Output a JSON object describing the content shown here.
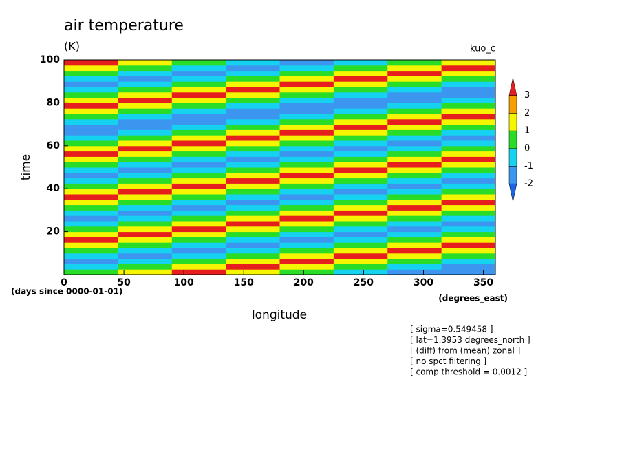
{
  "chart_data": {
    "type": "contour",
    "title": "air temperature",
    "subtitle": "(K)",
    "label_right": "kuo_c",
    "x_label": "longitude",
    "y_label": "time",
    "x_units": "(degrees_east)",
    "y_units": "(days since 0000-01-01)",
    "annotations": [
      "[ sigma=0.549458 ]",
      "[ lat=1.3953 degrees_north ]",
      "[ (diff) from (mean) zonal ]",
      "[ no spct filtering ]",
      "[ comp threshold = 0.0012 ]"
    ],
    "xlim": [
      0,
      360
    ],
    "ylim": [
      0,
      100
    ],
    "xticks": [
      0,
      50,
      100,
      150,
      200,
      250,
      300,
      350
    ],
    "yticks": [
      20,
      40,
      60,
      80,
      100
    ],
    "levels": [
      -2,
      -1,
      0,
      1,
      2,
      3
    ],
    "colors": [
      "#1e64e6",
      "#3c96f0",
      "#14d2f0",
      "#28dc28",
      "#f5f500",
      "#f5a000",
      "#e61e1e"
    ],
    "x": [
      22.5,
      67.5,
      112.5,
      157.5,
      202.5,
      247.5,
      292.5,
      337.5
    ],
    "y": [
      1.25,
      3.75,
      6.25,
      8.75,
      11.25,
      13.75,
      16.25,
      18.75,
      21.25,
      23.75,
      26.25,
      28.75,
      31.25,
      33.75,
      36.25,
      38.75,
      41.25,
      43.75,
      46.25,
      48.75,
      51.25,
      53.75,
      56.25,
      58.75,
      61.25,
      63.75,
      66.25,
      68.75,
      71.25,
      73.75,
      76.25,
      78.75,
      81.25,
      83.75,
      86.25,
      88.75,
      91.25,
      93.75,
      96.25,
      98.75
    ],
    "z": [
      [
        0.5,
        1.5,
        3.3,
        1.5,
        0.5,
        -0.5,
        -1.3,
        -1.3
      ],
      [
        -0.5,
        0.5,
        1.5,
        3.3,
        1.5,
        0.5,
        -0.5,
        -1.3
      ],
      [
        -1.3,
        -0.5,
        0.5,
        1.5,
        3.3,
        1.5,
        0.5,
        -0.5
      ],
      [
        -0.5,
        -1.3,
        -0.5,
        0.5,
        1.5,
        3.3,
        1.5,
        0.5
      ],
      [
        0.5,
        -0.5,
        -1.3,
        -0.5,
        0.5,
        1.5,
        3.3,
        1.5
      ],
      [
        1.5,
        0.5,
        -0.5,
        -1.3,
        -0.5,
        0.5,
        1.5,
        3.3
      ],
      [
        3.3,
        1.5,
        0.5,
        -0.5,
        -1.3,
        -0.5,
        0.5,
        1.5
      ],
      [
        1.5,
        3.3,
        1.5,
        0.5,
        -0.5,
        -1.3,
        -0.5,
        0.5
      ],
      [
        0.5,
        1.5,
        3.3,
        1.5,
        0.5,
        -0.5,
        -1.3,
        -0.5
      ],
      [
        -0.5,
        0.5,
        1.5,
        3.3,
        1.5,
        0.5,
        -0.5,
        -1.3
      ],
      [
        -1.3,
        -0.5,
        0.5,
        1.5,
        3.3,
        1.5,
        0.5,
        -0.5
      ],
      [
        -0.5,
        -1.3,
        -0.5,
        0.5,
        1.5,
        3.3,
        1.5,
        0.5
      ],
      [
        0.5,
        -0.5,
        -1.3,
        -0.5,
        0.5,
        1.5,
        3.3,
        1.5
      ],
      [
        1.5,
        0.5,
        -0.5,
        -1.3,
        -0.5,
        0.5,
        1.5,
        3.3
      ],
      [
        3.3,
        1.5,
        0.5,
        -0.5,
        -1.3,
        -0.5,
        0.5,
        1.5
      ],
      [
        1.5,
        3.3,
        1.5,
        0.5,
        -0.5,
        -1.3,
        -0.5,
        0.5
      ],
      [
        0.5,
        1.5,
        3.3,
        1.5,
        0.5,
        -0.5,
        -1.3,
        -0.5
      ],
      [
        -0.5,
        0.5,
        1.5,
        3.3,
        1.5,
        0.5,
        -0.5,
        -1.3
      ],
      [
        -1.3,
        -0.5,
        0.5,
        1.5,
        3.3,
        1.5,
        0.5,
        -0.5
      ],
      [
        -0.5,
        -1.3,
        -0.5,
        0.5,
        1.5,
        3.3,
        1.5,
        0.5
      ],
      [
        0.5,
        -0.5,
        -1.3,
        -0.5,
        0.5,
        1.5,
        3.3,
        1.5
      ],
      [
        1.5,
        0.5,
        -0.5,
        -1.3,
        -0.5,
        0.5,
        1.5,
        3.3
      ],
      [
        3.3,
        1.5,
        0.5,
        -0.5,
        -1.3,
        -0.5,
        0.5,
        1.5
      ],
      [
        1.5,
        3.3,
        1.5,
        0.5,
        -0.5,
        -1.3,
        -0.5,
        0.5
      ],
      [
        0.5,
        1.5,
        3.3,
        1.5,
        0.5,
        -0.5,
        -1.3,
        -0.5
      ],
      [
        -0.5,
        0.5,
        1.5,
        3.3,
        1.5,
        0.5,
        -0.5,
        -1.3
      ],
      [
        -1.3,
        -0.5,
        0.5,
        1.5,
        3.3,
        1.5,
        0.5,
        -0.5
      ],
      [
        -1.3,
        -1.3,
        -0.5,
        0.5,
        1.5,
        3.3,
        1.5,
        0.5
      ],
      [
        -0.5,
        -1.3,
        -1.3,
        -0.5,
        0.5,
        1.5,
        3.3,
        1.5
      ],
      [
        0.5,
        -0.5,
        -1.3,
        -1.3,
        -0.5,
        0.5,
        1.5,
        3.3
      ],
      [
        1.5,
        0.5,
        -0.5,
        -1.3,
        -1.3,
        -0.5,
        0.5,
        1.5
      ],
      [
        3.3,
        1.5,
        0.5,
        -0.5,
        -1.3,
        -1.3,
        -0.5,
        0.5
      ],
      [
        1.5,
        3.3,
        1.5,
        0.5,
        -0.5,
        -1.3,
        -1.3,
        -0.5
      ],
      [
        0.5,
        1.5,
        3.3,
        1.5,
        0.5,
        -0.5,
        -1.3,
        -1.3
      ],
      [
        -0.5,
        0.5,
        1.5,
        3.3,
        1.5,
        0.5,
        -0.5,
        -1.3
      ],
      [
        -1.3,
        -0.5,
        0.5,
        1.5,
        3.3,
        1.5,
        0.5,
        -0.5
      ],
      [
        -0.5,
        -1.3,
        -0.5,
        0.5,
        1.5,
        3.3,
        1.5,
        0.5
      ],
      [
        0.5,
        -0.5,
        -1.3,
        -0.5,
        0.5,
        1.5,
        3.3,
        1.5
      ],
      [
        1.5,
        0.5,
        -0.5,
        -1.3,
        -0.5,
        0.5,
        1.5,
        3.3
      ],
      [
        3.3,
        1.5,
        0.5,
        -0.5,
        -1.3,
        -0.5,
        0.5,
        1.5
      ]
    ]
  }
}
